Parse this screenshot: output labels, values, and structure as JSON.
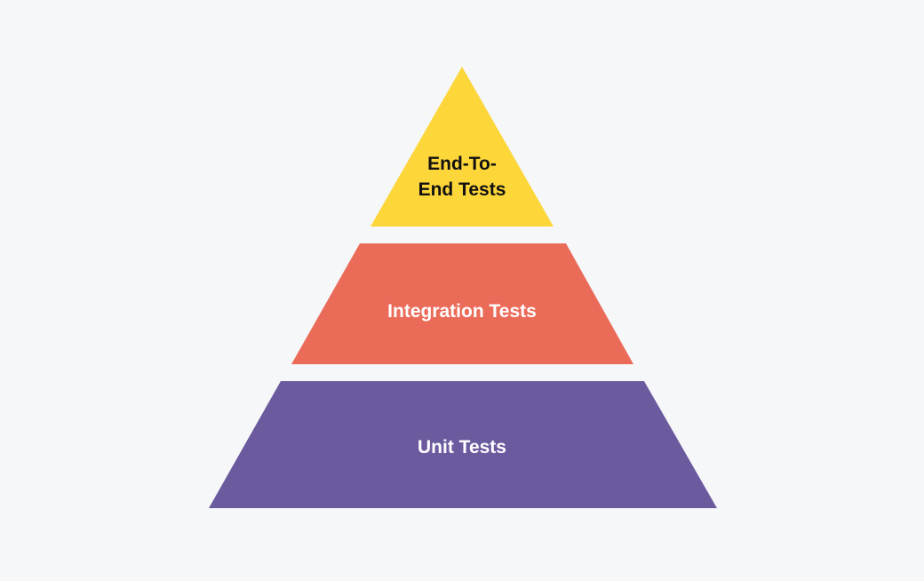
{
  "pyramid": {
    "levels": [
      {
        "lines": [
          "End-To-",
          "End Tests"
        ],
        "fill": "#FDD63A",
        "text_color": "#111111"
      },
      {
        "lines": [
          "Integration Tests"
        ],
        "fill": "#EB6B59",
        "text_color": "#FFFFFF"
      },
      {
        "lines": [
          "Unit Tests"
        ],
        "fill": "#6C5A9F",
        "text_color": "#FFFFFF"
      }
    ]
  }
}
